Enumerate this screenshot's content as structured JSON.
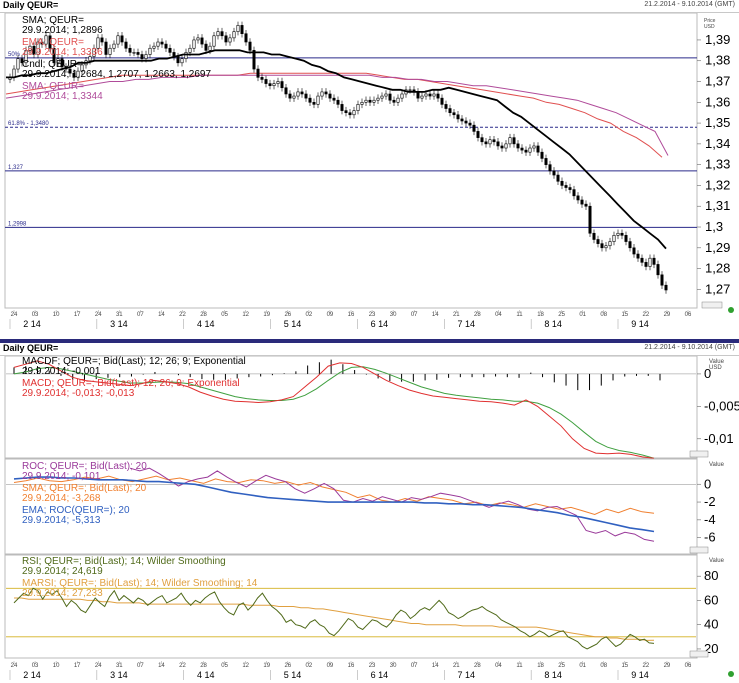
{
  "top_window": {
    "title": "Daily QEUR=",
    "date_range": "21.2.2014 - 9.10.2014 (GMT)",
    "price_label": "Price",
    "currency": "USD"
  },
  "bottom_window": {
    "title": "Daily QEUR=",
    "date_range": "21.2.2014 - 9.10.2014 (GMT)"
  },
  "x_axis": {
    "day_ticks": [
      "24",
      "03",
      "10",
      "17",
      "24",
      "31",
      "07",
      "14",
      "22",
      "28",
      "05",
      "12",
      "19",
      "26",
      "02",
      "09",
      "16",
      "23",
      "30",
      "07",
      "14",
      "21",
      "28",
      "04",
      "11",
      "18",
      "25",
      "01",
      "08",
      "15",
      "22",
      "29",
      "06"
    ],
    "month_labels": [
      "2 14",
      "3 14",
      "4 14",
      "5 14",
      "6 14",
      "7 14",
      "8 14",
      "9 14"
    ]
  },
  "colors": {
    "price_candles": "#000000",
    "sma": "#000000",
    "ema": "#e05050",
    "marsi_ma": "#b04b9a",
    "macd_line": "#e03030",
    "signal_line": "#40a040",
    "roc_line": "#9a3a9a",
    "roc_sma": "#f08030",
    "roc_ema": "#3060c0",
    "rsi_line": "#506a1a",
    "marsi": "#e0a040",
    "hline": "#2a2a8a"
  },
  "chart_data": [
    {
      "type": "candlestick",
      "panel": "price",
      "ylim": [
        1.262,
        1.402
      ],
      "yticks": [
        "1,39",
        "1,38",
        "1,37",
        "1,36",
        "1,35",
        "1,34",
        "1,33",
        "1,32",
        "1,31",
        "1,3",
        "1,29",
        "1,28",
        "1,27"
      ],
      "legend": [
        {
          "name": "SMA; QEUR=",
          "value": "29.9.2014; 1,2896"
        },
        {
          "name": "EMA; QEUR=",
          "value": "29.9.2014; 1,3336"
        },
        {
          "name": "Cndl; QEUR=",
          "value": "29.9.2014; 1,2684, 1,2707, 1,2663, 1,2697"
        },
        {
          "name": "SMA; QEUR=",
          "value": "29.9.2014; 1,3344"
        }
      ],
      "fib_lines": [
        {
          "label": "50%",
          "value": 1.3814
        },
        {
          "label": "61.8% - 1,3480",
          "value": 1.348
        },
        {
          "label": "1,327",
          "value": 1.327
        },
        {
          "label": "1,2998",
          "value": 1.2998
        }
      ],
      "close": [
        1.372,
        1.376,
        1.381,
        1.379,
        1.385,
        1.387,
        1.383,
        1.389,
        1.388,
        1.392,
        1.386,
        1.379,
        1.381,
        1.377,
        1.376,
        1.374,
        1.372,
        1.375,
        1.378,
        1.38,
        1.382,
        1.386,
        1.391,
        1.389,
        1.383,
        1.386,
        1.388,
        1.392,
        1.389,
        1.386,
        1.384,
        1.384,
        1.383,
        1.381,
        1.383,
        1.386,
        1.387,
        1.389,
        1.388,
        1.386,
        1.384,
        1.382,
        1.379,
        1.381,
        1.384,
        1.386,
        1.39,
        1.391,
        1.388,
        1.385,
        1.387,
        1.392,
        1.394,
        1.392,
        1.389,
        1.391,
        1.394,
        1.397,
        1.393,
        1.389,
        1.385,
        1.376,
        1.372,
        1.371,
        1.369,
        1.368,
        1.369,
        1.37,
        1.367,
        1.364,
        1.362,
        1.363,
        1.365,
        1.364,
        1.362,
        1.36,
        1.359,
        1.363,
        1.365,
        1.364,
        1.362,
        1.361,
        1.359,
        1.356,
        1.355,
        1.354,
        1.356,
        1.359,
        1.36,
        1.361,
        1.36,
        1.361,
        1.362,
        1.363,
        1.364,
        1.361,
        1.36,
        1.362,
        1.364,
        1.366,
        1.366,
        1.365,
        1.362,
        1.363,
        1.364,
        1.363,
        1.364,
        1.362,
        1.359,
        1.357,
        1.355,
        1.354,
        1.352,
        1.351,
        1.35,
        1.349,
        1.346,
        1.343,
        1.341,
        1.34,
        1.342,
        1.341,
        1.339,
        1.338,
        1.34,
        1.343,
        1.34,
        1.338,
        1.337,
        1.336,
        1.338,
        1.339,
        1.336,
        1.333,
        1.33,
        1.327,
        1.325,
        1.322,
        1.32,
        1.319,
        1.318,
        1.315,
        1.313,
        1.311,
        1.31,
        1.297,
        1.294,
        1.292,
        1.29,
        1.291,
        1.293,
        1.296,
        1.297,
        1.296,
        1.293,
        1.29,
        1.287,
        1.285,
        1.283,
        1.281,
        1.285,
        1.282,
        1.277,
        1.272,
        1.2697
      ],
      "sma_long": [
        1.372,
        1.372,
        1.373,
        1.373,
        1.374,
        1.374,
        1.375,
        1.376,
        1.377,
        1.379,
        1.379,
        1.38,
        1.38,
        1.38,
        1.38,
        1.38,
        1.38,
        1.38,
        1.38,
        1.381,
        1.381,
        1.382,
        1.383,
        1.383,
        1.383,
        1.384,
        1.385,
        1.385,
        1.385,
        1.385,
        1.384,
        1.384,
        1.384,
        1.383,
        1.383,
        1.382,
        1.381,
        1.38,
        1.378,
        1.377,
        1.375,
        1.374,
        1.372,
        1.371,
        1.37,
        1.369,
        1.368,
        1.367,
        1.366,
        1.366,
        1.365,
        1.365,
        1.365,
        1.366,
        1.366,
        1.367,
        1.366,
        1.365,
        1.364,
        1.363,
        1.362,
        1.361,
        1.358,
        1.355,
        1.353,
        1.35,
        1.347,
        1.344,
        1.341,
        1.338,
        1.335,
        1.331,
        1.327,
        1.323,
        1.319,
        1.315,
        1.311,
        1.307,
        1.303,
        1.3,
        1.297,
        1.294,
        1.2896
      ],
      "ema_long": [
        1.364,
        1.365,
        1.366,
        1.367,
        1.368,
        1.369,
        1.37,
        1.371,
        1.372,
        1.373,
        1.373,
        1.373,
        1.373,
        1.373,
        1.373,
        1.373,
        1.373,
        1.373,
        1.373,
        1.374,
        1.374,
        1.374,
        1.374,
        1.374,
        1.374,
        1.374,
        1.374,
        1.374,
        1.374,
        1.373,
        1.372,
        1.371,
        1.371,
        1.37,
        1.369,
        1.368,
        1.367,
        1.366,
        1.365,
        1.364,
        1.363,
        1.362,
        1.36,
        1.359,
        1.357,
        1.355,
        1.352,
        1.35,
        1.346,
        1.343,
        1.339,
        1.3336
      ],
      "sma_mid": [
        1.362,
        1.363,
        1.364,
        1.365,
        1.366,
        1.367,
        1.368,
        1.369,
        1.37,
        1.37,
        1.371,
        1.371,
        1.372,
        1.372,
        1.372,
        1.373,
        1.373,
        1.373,
        1.373,
        1.373,
        1.373,
        1.373,
        1.373,
        1.373,
        1.373,
        1.373,
        1.373,
        1.373,
        1.373,
        1.372,
        1.372,
        1.371,
        1.371,
        1.37,
        1.37,
        1.369,
        1.368,
        1.368,
        1.367,
        1.366,
        1.365,
        1.364,
        1.363,
        1.362,
        1.361,
        1.359,
        1.357,
        1.355,
        1.352,
        1.349,
        1.346,
        1.3344
      ]
    },
    {
      "type": "bar+line",
      "panel": "macd",
      "ylim": [
        -0.0125,
        0.0023
      ],
      "yticks": [
        "0",
        "-0,005",
        "-0,01"
      ],
      "value_label": "Value",
      "currency": "USD",
      "legend": [
        {
          "name": "MACDF; QEUR=; Bid(Last); 12; 26; 9; Exponential",
          "value": "29.9.2014; -0,001"
        },
        {
          "name": "MACD; QEUR=; Bid(Last); 12; 26; 9; Exponential",
          "value": "29.9.2014; -0,013; -0,013"
        }
      ],
      "macd": [
        0.001,
        0.0015,
        0.002,
        0.0015,
        0.0005,
        -0.0005,
        -0.001,
        -0.0012,
        -0.0014,
        -0.0016,
        -0.0018,
        -0.0015,
        -0.001,
        -0.0012,
        -0.0015,
        -0.002,
        -0.0028,
        -0.0034,
        -0.0039,
        -0.0042,
        -0.0043,
        -0.0044,
        -0.0043,
        -0.004,
        -0.0035,
        -0.002,
        -0.0005,
        0.0012,
        0.0017,
        0.0016,
        0.001,
        0.0,
        -0.001,
        -0.0018,
        -0.0025,
        -0.003,
        -0.0034,
        -0.0036,
        -0.0038,
        -0.004,
        -0.0042,
        -0.0043,
        -0.0045,
        -0.0048,
        -0.004,
        -0.005,
        -0.0065,
        -0.008,
        -0.01,
        -0.0115,
        -0.0122,
        -0.0123,
        -0.0122,
        -0.0124,
        -0.0128,
        -0.013
      ],
      "signal": [
        0.0,
        0.0003,
        0.0008,
        0.001,
        0.0008,
        0.0004,
        0.0,
        -0.0004,
        -0.0008,
        -0.0011,
        -0.0014,
        -0.0014,
        -0.0013,
        -0.0012,
        -0.0013,
        -0.0015,
        -0.002,
        -0.0025,
        -0.003,
        -0.0035,
        -0.0038,
        -0.004,
        -0.0041,
        -0.0041,
        -0.0039,
        -0.0033,
        -0.0023,
        -0.001,
        0.0002,
        0.001,
        0.0011,
        0.0007,
        0.0001,
        -0.0006,
        -0.0013,
        -0.002,
        -0.0025,
        -0.003,
        -0.0033,
        -0.0035,
        -0.0037,
        -0.0039,
        -0.004,
        -0.0042,
        -0.0042,
        -0.0045,
        -0.0052,
        -0.0062,
        -0.0075,
        -0.009,
        -0.0104,
        -0.0113,
        -0.0118,
        -0.0121,
        -0.0125,
        -0.013
      ],
      "histogram": [
        0.001,
        0.0012,
        0.0012,
        0.0005,
        -0.0003,
        -0.0009,
        -0.001,
        -0.0008,
        -0.0006,
        -0.0005,
        -0.0004,
        -0.0001,
        0.0003,
        0.0,
        -0.0002,
        -0.0005,
        -0.0008,
        -0.0009,
        -0.0009,
        -0.0007,
        -0.0005,
        -0.0004,
        -0.0002,
        0.0001,
        0.0004,
        0.0013,
        0.0018,
        0.0022,
        0.0015,
        0.0006,
        -0.0001,
        -0.0007,
        -0.0011,
        -0.0012,
        -0.0012,
        -0.001,
        -0.0009,
        -0.0006,
        -0.0005,
        -0.0005,
        -0.0005,
        -0.0004,
        -0.0005,
        -0.0006,
        0.0002,
        -0.0005,
        -0.0013,
        -0.0018,
        -0.0025,
        -0.0025,
        -0.0018,
        -0.001,
        -0.0004,
        -0.0003,
        -0.0003,
        -0.001
      ]
    },
    {
      "type": "line",
      "panel": "roc",
      "ylim": [
        -7.5,
        2.5
      ],
      "yticks": [
        "0",
        "-2",
        "-4",
        "-6"
      ],
      "value_label": "Value",
      "legend": [
        {
          "name": "ROC; QEUR=; Bid(Last); 20",
          "value": "29.9.2014; -0,101"
        },
        {
          "name": "SMA; QEUR=; Bid(Last); 20",
          "value": "29.9.2014; -3,268"
        },
        {
          "name": "EMA; ROC(QEUR=); 20",
          "value": "29.9.2014; -5,313"
        }
      ],
      "roc": [
        1.8,
        1.5,
        1.8,
        1.2,
        0.5,
        -0.2,
        0.3,
        0.6,
        0.8,
        1.5,
        0.8,
        0.2,
        -0.3,
        0.4,
        1.0,
        0.6,
        0.3,
        -0.5,
        -1.0,
        -0.5,
        0.1,
        -0.5,
        -1.8,
        -2.0,
        -1.6,
        -1.9,
        -1.4,
        -1.7,
        -2.0,
        -1.5,
        -1.7,
        -1.4,
        -1.0,
        -1.2,
        -1.4,
        -1.8,
        -2.2,
        -2.6,
        -2.2,
        -1.9,
        -2.3,
        -2.8,
        -3.0,
        -2.6,
        -2.5,
        -3.0,
        -3.5,
        -5.2,
        -5.5,
        -5.2,
        -5.8,
        -5.4,
        -5.6,
        -6.2,
        -6.4
      ],
      "sma": [
        0.2,
        0.4,
        0.7,
        0.4,
        0.3,
        0.5,
        0.8,
        0.6,
        0.9,
        0.5,
        0.3,
        0.6,
        0.9,
        0.5,
        0.7,
        0.4,
        0.1,
        0.6,
        0.3,
        0.2,
        0.5,
        0.4,
        0.1,
        0.3,
        -0.1,
        0.2,
        -0.3,
        -0.6,
        -0.9,
        -1.5,
        -1.2,
        -1.8,
        -2.0,
        -1.6,
        -1.9,
        -1.4,
        -1.6,
        -1.8,
        -2.2,
        -2.0,
        -2.4,
        -2.1,
        -2.3,
        -2.6,
        -2.2,
        -2.5,
        -2.8,
        -2.6,
        -3.0,
        -3.4,
        -2.8,
        -3.2,
        -2.7,
        -3.1,
        -3.268
      ],
      "ema": [
        0.6,
        0.7,
        0.8,
        0.8,
        0.7,
        0.7,
        0.6,
        0.5,
        0.5,
        0.5,
        0.4,
        0.3,
        0.3,
        0.2,
        0.1,
        0.0,
        -0.3,
        -0.6,
        -0.9,
        -1.1,
        -1.3,
        -1.5,
        -1.6,
        -1.7,
        -1.8,
        -1.9,
        -2.0,
        -2.0,
        -2.0,
        -2.0,
        -2.0,
        -2.0,
        -2.0,
        -2.0,
        -2.1,
        -2.1,
        -2.2,
        -2.2,
        -2.3,
        -2.3,
        -2.4,
        -2.5,
        -2.6,
        -2.8,
        -3.0,
        -3.2,
        -3.5,
        -3.7,
        -4.0,
        -4.3,
        -4.6,
        -4.9,
        -5.1,
        -5.313
      ]
    },
    {
      "type": "line",
      "panel": "rsi",
      "ylim": [
        15,
        95
      ],
      "yticks": [
        "80",
        "60",
        "40",
        "20"
      ],
      "value_label": "Value",
      "legend": [
        {
          "name": "RSI; QEUR=; Bid(Last); 14; Wilder Smoothing",
          "value": "29.9.2014; 24,619"
        },
        {
          "name": "MARSI; QEUR=; Bid(Last); 14; Wilder Smoothing; 14",
          "value": "29.9.2014; 27,233"
        }
      ],
      "hlines": [
        70,
        30
      ],
      "rsi": [
        58,
        62,
        66,
        64,
        70,
        68,
        61,
        67,
        65,
        68,
        62,
        55,
        60,
        57,
        52,
        50,
        56,
        62,
        58,
        55,
        63,
        68,
        60,
        64,
        61,
        58,
        62,
        60,
        56,
        59,
        62,
        64,
        58,
        60,
        62,
        66,
        60,
        56,
        60,
        58,
        62,
        65,
        67,
        59,
        54,
        50,
        48,
        56,
        58,
        52,
        56,
        62,
        66,
        60,
        55,
        52,
        48,
        42,
        44,
        40,
        39,
        37,
        42,
        44,
        40,
        38,
        33,
        31,
        35,
        40,
        45,
        43,
        38,
        36,
        40,
        44,
        43,
        40,
        38,
        42,
        48,
        52,
        50,
        45,
        48,
        52,
        54,
        52,
        56,
        60,
        56,
        50,
        48,
        45,
        47,
        50,
        52,
        53,
        55,
        52,
        50,
        48,
        44,
        42,
        40,
        38,
        35,
        33,
        30,
        32,
        35,
        33,
        30,
        32,
        34,
        35,
        30,
        28,
        26,
        22,
        20,
        22,
        24,
        28,
        30,
        26,
        22,
        24,
        28,
        32,
        30,
        27,
        28,
        25,
        24.6
      ],
      "marsi": [
        62,
        62,
        61,
        61,
        61,
        61,
        61,
        61,
        61,
        61,
        60,
        60,
        59,
        59,
        58,
        58,
        58,
        58,
        57,
        57,
        57,
        57,
        57,
        57,
        57,
        57,
        57,
        57,
        57,
        57,
        57,
        57,
        56,
        56,
        56,
        56,
        55,
        55,
        55,
        54,
        54,
        53,
        53,
        52,
        51,
        50,
        49,
        48,
        47,
        46,
        45,
        44,
        43,
        42,
        41,
        41,
        40,
        40,
        40,
        40,
        40,
        39,
        39,
        39,
        39,
        39,
        38,
        38,
        38,
        38,
        38,
        38,
        37,
        36,
        35,
        34,
        33,
        32,
        31,
        30,
        30,
        29,
        29,
        28,
        28,
        28,
        27,
        27.2
      ]
    }
  ]
}
